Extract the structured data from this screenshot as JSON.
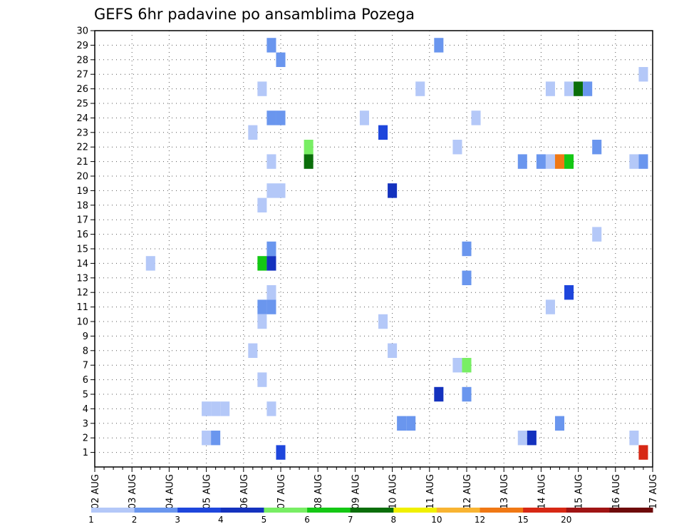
{
  "chart_data": {
    "type": "heatmap",
    "title": "GEFS 6hr padavine po ansamblima Pozega",
    "xlabel": "",
    "ylabel": "",
    "x_ticks": [
      "02 AUG",
      "03 AUG",
      "04 AUG",
      "05 AUG",
      "06 AUG",
      "07 AUG",
      "08 AUG",
      "09 AUG",
      "10 AUG",
      "11 AUG",
      "12 AUG",
      "13 AUG",
      "14 AUG",
      "15 AUG",
      "16 AUG",
      "17 AUG"
    ],
    "y_ticks": [
      "1",
      "2",
      "3",
      "4",
      "5",
      "6",
      "7",
      "8",
      "9",
      "10",
      "11",
      "12",
      "13",
      "14",
      "15",
      "16",
      "17",
      "18",
      "19",
      "20",
      "21",
      "22",
      "23",
      "24",
      "25",
      "26",
      "27",
      "28",
      "29",
      "30"
    ],
    "x_range_days": [
      0,
      15
    ],
    "y_range": [
      0,
      30
    ],
    "grid": true,
    "legend": "bottom colorbar",
    "colorbar": {
      "labels": [
        "1",
        "2",
        "3",
        "4",
        "5",
        "6",
        "7",
        "8",
        "10",
        "12",
        "15",
        "20"
      ],
      "colors": [
        "#b4c8f8",
        "#6a96ee",
        "#1e46dc",
        "#1432be",
        "#78ee64",
        "#14c814",
        "#0a6e0a",
        "#f0f000",
        "#f8b432",
        "#f07814",
        "#d72814",
        "#a01414",
        "#6e0a0a"
      ]
    },
    "cells": [
      {
        "day": 4.75,
        "m": 29,
        "c": 2
      },
      {
        "day": 9.25,
        "m": 29,
        "c": 2
      },
      {
        "day": 5.0,
        "m": 28,
        "c": 2
      },
      {
        "day": 14.75,
        "m": 27,
        "c": 1
      },
      {
        "day": 4.5,
        "m": 26,
        "c": 1
      },
      {
        "day": 8.75,
        "m": 26,
        "c": 1
      },
      {
        "day": 12.25,
        "m": 26,
        "c": 1
      },
      {
        "day": 12.75,
        "m": 26,
        "c": 1
      },
      {
        "day": 13.0,
        "m": 26,
        "c": 7
      },
      {
        "day": 13.25,
        "m": 26,
        "c": 2
      },
      {
        "day": 4.75,
        "m": 24,
        "c": 2
      },
      {
        "day": 5.0,
        "m": 24,
        "c": 2
      },
      {
        "day": 7.25,
        "m": 24,
        "c": 1
      },
      {
        "day": 10.25,
        "m": 24,
        "c": 1
      },
      {
        "day": 4.25,
        "m": 23,
        "c": 1
      },
      {
        "day": 7.75,
        "m": 23,
        "c": 3
      },
      {
        "day": 5.75,
        "m": 22,
        "c": 5
      },
      {
        "day": 9.75,
        "m": 22,
        "c": 1
      },
      {
        "day": 13.5,
        "m": 22,
        "c": 2
      },
      {
        "day": 4.75,
        "m": 21,
        "c": 1
      },
      {
        "day": 5.75,
        "m": 21,
        "c": 7
      },
      {
        "day": 11.5,
        "m": 21,
        "c": 2
      },
      {
        "day": 12.0,
        "m": 21,
        "c": 2
      },
      {
        "day": 12.25,
        "m": 21,
        "c": 1
      },
      {
        "day": 12.5,
        "m": 21,
        "c": 10
      },
      {
        "day": 12.75,
        "m": 21,
        "c": 6
      },
      {
        "day": 14.5,
        "m": 21,
        "c": 1
      },
      {
        "day": 14.75,
        "m": 21,
        "c": 2
      },
      {
        "day": 4.75,
        "m": 19,
        "c": 1
      },
      {
        "day": 5.0,
        "m": 19,
        "c": 1
      },
      {
        "day": 8.0,
        "m": 19,
        "c": 4
      },
      {
        "day": 4.5,
        "m": 18,
        "c": 1
      },
      {
        "day": 13.5,
        "m": 16,
        "c": 1
      },
      {
        "day": 4.75,
        "m": 15,
        "c": 2
      },
      {
        "day": 10.0,
        "m": 15,
        "c": 2
      },
      {
        "day": 1.5,
        "m": 14,
        "c": 1
      },
      {
        "day": 4.5,
        "m": 14,
        "c": 6
      },
      {
        "day": 4.75,
        "m": 14,
        "c": 4
      },
      {
        "day": 10.0,
        "m": 13,
        "c": 2
      },
      {
        "day": 4.75,
        "m": 12,
        "c": 1
      },
      {
        "day": 12.75,
        "m": 12,
        "c": 3
      },
      {
        "day": 4.5,
        "m": 11,
        "c": 2
      },
      {
        "day": 4.75,
        "m": 11,
        "c": 2
      },
      {
        "day": 12.25,
        "m": 11,
        "c": 1
      },
      {
        "day": 4.5,
        "m": 10,
        "c": 1
      },
      {
        "day": 7.75,
        "m": 10,
        "c": 1
      },
      {
        "day": 4.25,
        "m": 8,
        "c": 1
      },
      {
        "day": 8.0,
        "m": 8,
        "c": 1
      },
      {
        "day": 9.75,
        "m": 7,
        "c": 1
      },
      {
        "day": 10.0,
        "m": 7,
        "c": 5
      },
      {
        "day": 4.5,
        "m": 6,
        "c": 1
      },
      {
        "day": 9.25,
        "m": 5,
        "c": 4
      },
      {
        "day": 10.0,
        "m": 5,
        "c": 2
      },
      {
        "day": 3.0,
        "m": 4,
        "c": 1
      },
      {
        "day": 3.25,
        "m": 4,
        "c": 1
      },
      {
        "day": 3.5,
        "m": 4,
        "c": 1
      },
      {
        "day": 4.75,
        "m": 4,
        "c": 1
      },
      {
        "day": 8.25,
        "m": 3,
        "c": 2
      },
      {
        "day": 8.5,
        "m": 3,
        "c": 2
      },
      {
        "day": 12.5,
        "m": 3,
        "c": 2
      },
      {
        "day": 3.0,
        "m": 2,
        "c": 1
      },
      {
        "day": 3.25,
        "m": 2,
        "c": 2
      },
      {
        "day": 11.5,
        "m": 2,
        "c": 1
      },
      {
        "day": 11.75,
        "m": 2,
        "c": 4
      },
      {
        "day": 14.5,
        "m": 2,
        "c": 1
      },
      {
        "day": 5.0,
        "m": 1,
        "c": 3
      },
      {
        "day": 14.75,
        "m": 1,
        "c": 11
      }
    ]
  }
}
